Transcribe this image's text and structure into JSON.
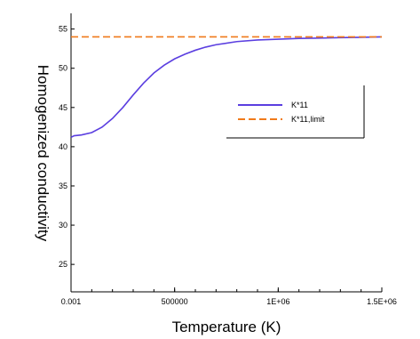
{
  "chart_data": {
    "type": "line",
    "xlabel": "Temperature (K)",
    "ylabel": "Homogenized conductivity",
    "xlim": [
      0.001,
      1500000
    ],
    "ylim": [
      21.5,
      57
    ],
    "x_ticks": [
      0.001,
      500000,
      1000000,
      1500000
    ],
    "x_tick_labels": [
      "0.001",
      "500000",
      "1E+06",
      "1.5E+06"
    ],
    "y_ticks": [
      25,
      30,
      35,
      40,
      45,
      50,
      55
    ],
    "y_tick_labels": [
      "25",
      "30",
      "35",
      "40",
      "45",
      "50",
      "55"
    ],
    "legend_position": "right",
    "grid": false,
    "series": [
      {
        "name": "K*11",
        "color": "#5b3fe0",
        "style": "solid",
        "x": [
          0.001,
          15000,
          50000,
          100000,
          150000,
          200000,
          250000,
          300000,
          350000,
          400000,
          450000,
          500000,
          550000,
          600000,
          650000,
          700000,
          800000,
          900000,
          1000000,
          1100000,
          1200000,
          1300000,
          1400000,
          1500000
        ],
        "y": [
          41.2,
          41.4,
          41.5,
          41.8,
          42.5,
          43.6,
          45.0,
          46.6,
          48.1,
          49.4,
          50.4,
          51.2,
          51.8,
          52.3,
          52.7,
          53.0,
          53.4,
          53.6,
          53.7,
          53.8,
          53.85,
          53.9,
          53.95,
          54.0
        ]
      },
      {
        "name": "K*11,limit",
        "color": "#f07a1a",
        "style": "dashed",
        "x": [
          0.001,
          1500000
        ],
        "y": [
          54.0,
          54.0
        ]
      }
    ]
  }
}
